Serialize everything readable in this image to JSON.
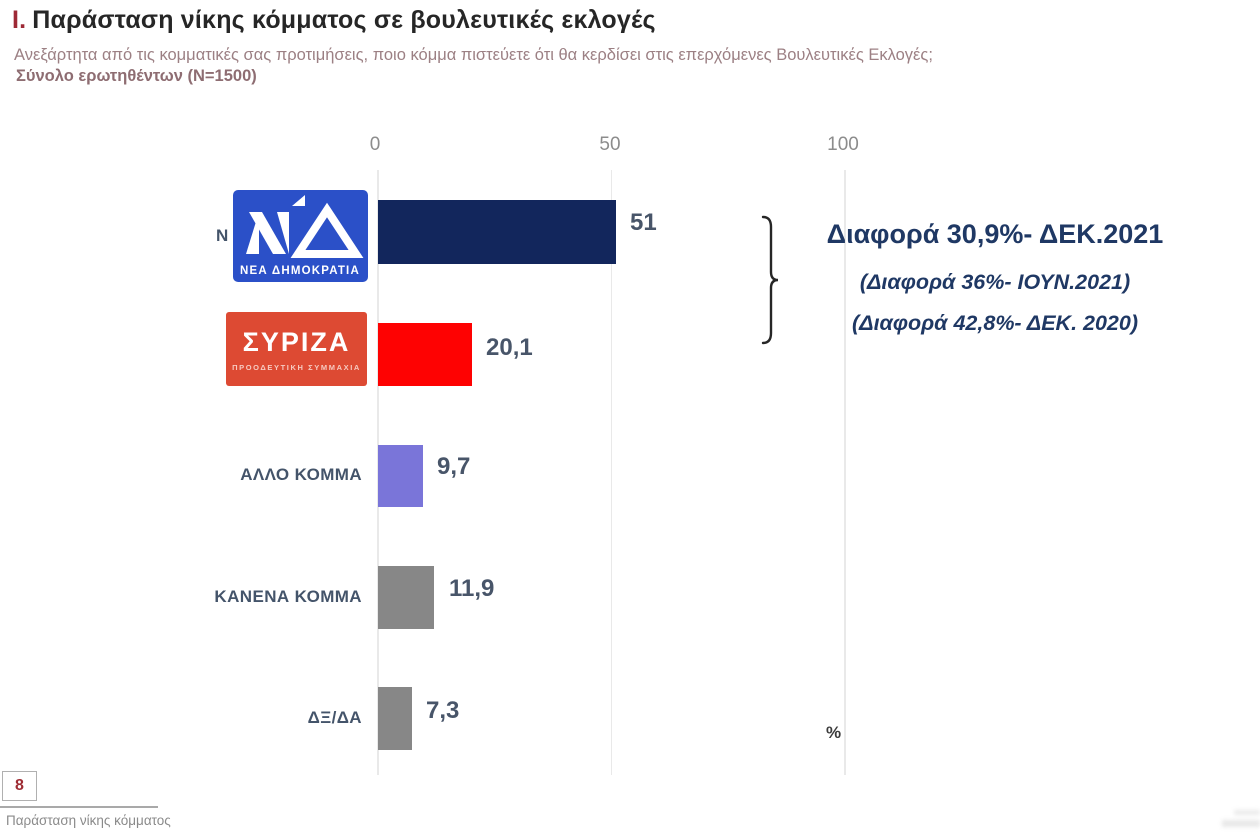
{
  "header": {
    "section_number": "I.",
    "title": "Παράσταση νίκης κόμματος σε βουλευτικές εκλογές",
    "subtitle": "Ανεξάρτητα από τις κομματικές σας προτιμήσεις, ποιο κόμμα πιστεύετε ότι θα κερδίσει στις επερχόμενες Βουλευτικές Εκλογές;",
    "sample": "Σύνολο ερωτηθέντων (N=1500)"
  },
  "chart_data": {
    "type": "bar",
    "orientation": "horizontal",
    "categories": [
      "ΝΔ",
      "ΣΥΡΙΖΑ",
      "ΑΛΛΟ ΚΟΜΜΑ",
      "ΚΑΝΕΝΑ ΚΟΜΜΑ",
      "ΔΞ/ΔΑ"
    ],
    "values": [
      51,
      20.1,
      9.7,
      11.9,
      7.3
    ],
    "value_labels": [
      "51",
      "20,1",
      "9,7",
      "11,9",
      "7,3"
    ],
    "bar_colors": [
      "#12265c",
      "#fe0202",
      "#7a75d9",
      "#878787",
      "#878787"
    ],
    "x_ticks": [
      "0",
      "50",
      "100"
    ],
    "xlim": [
      0,
      100
    ],
    "unit_label": "%",
    "grid": "vertical-light",
    "title": "Παράσταση νίκης κόμματος σε βουλευτικές εκλογές"
  },
  "logos": {
    "nd": {
      "partial_label": "Ν",
      "caption": "ΝΕΑ ΔΗΜΟΚΡΑΤΙΑ",
      "bg": "#2b50c8"
    },
    "syriza": {
      "main": "ΣΥΡΙΖΑ",
      "caption": "ΠΡΟΟΔΕΥΤΙΚΗ ΣΥΜΜΑΧΙΑ",
      "bg": "#dd4a33"
    }
  },
  "annotations": {
    "current": "Διαφορά 30,9%- ΔΕΚ.2021",
    "previous1": "(Διαφορά 36%- ΙΟΥΝ.2021)",
    "previous2": "(Διαφορά 42,8%- ΔΕΚ. 2020)"
  },
  "footer": {
    "page_number": "8",
    "text": "Παράσταση νίκης κόμματος"
  },
  "colors": {
    "title_accent": "#9e2936",
    "subtitle": "#9c8084",
    "annotation_navy": "#1f3864",
    "category_label": "#44546a",
    "value_label": "#485569",
    "gridline": "#e9e9e9"
  }
}
